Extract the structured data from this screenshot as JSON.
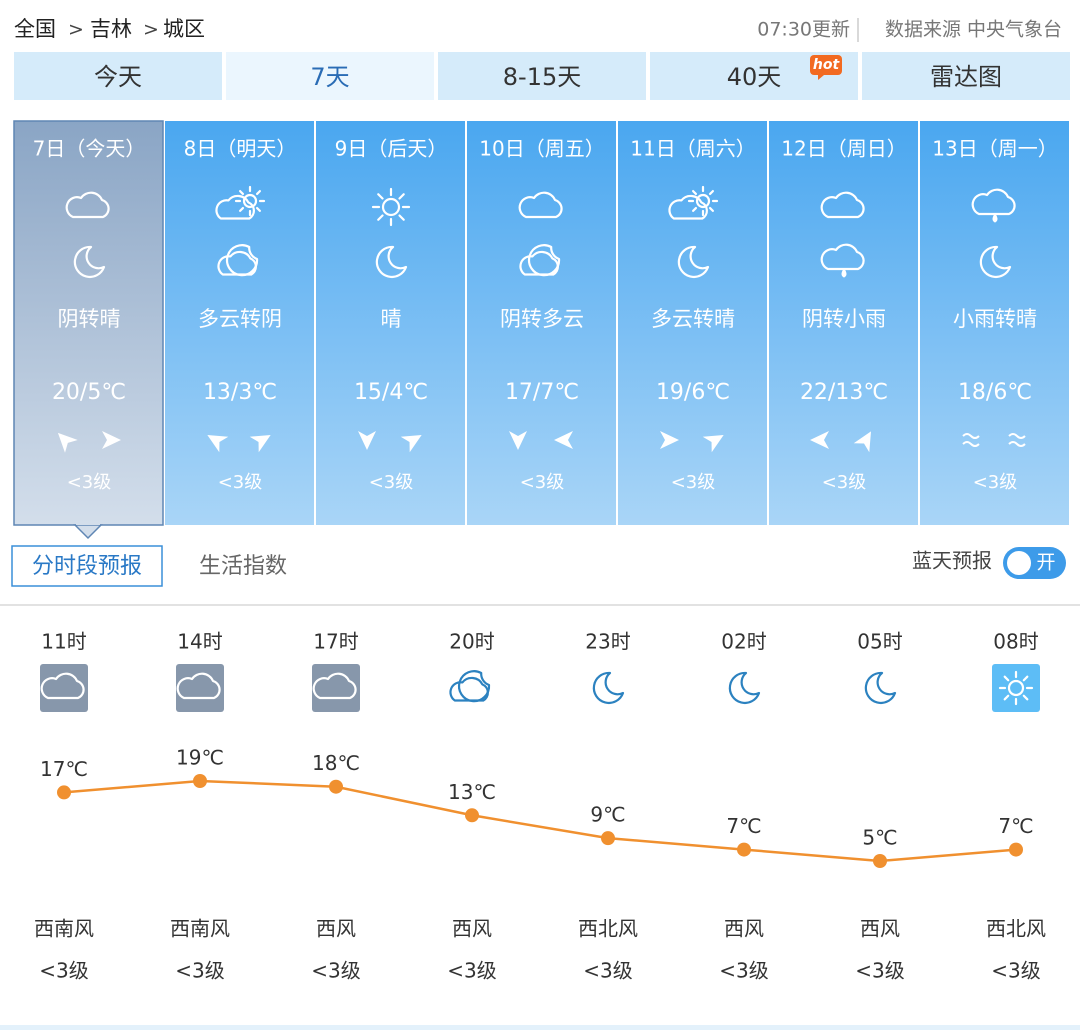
{
  "header": {
    "breadcrumb": [
      "全国",
      "吉林",
      "城区"
    ],
    "separator": ">",
    "updated": "07:30更新",
    "source": "数据来源 中央气象台"
  },
  "tabs": {
    "items": [
      "今天",
      "7天",
      "8-15天",
      "40天",
      "雷达图"
    ],
    "badge": "hot"
  },
  "days": [
    {
      "date": "7日（今天）",
      "weather": "阴转晴",
      "temp": "20/5℃",
      "wind": "<3级"
    },
    {
      "date": "8日（明天）",
      "weather": "多云转阴",
      "temp": "13/3℃",
      "wind": "<3级"
    },
    {
      "date": "9日（后天）",
      "weather": "晴",
      "temp": "15/4℃",
      "wind": "<3级"
    },
    {
      "date": "10日（周五）",
      "weather": "阴转多云",
      "temp": "17/7℃",
      "wind": "<3级"
    },
    {
      "date": "11日（周六）",
      "weather": "多云转晴",
      "temp": "19/6℃",
      "wind": "<3级"
    },
    {
      "date": "12日（周日）",
      "weather": "阴转小雨",
      "temp": "22/13℃",
      "wind": "<3级"
    },
    {
      "date": "13日（周一）",
      "weather": "小雨转晴",
      "temp": "18/6℃",
      "wind": "<3级"
    }
  ],
  "subtabs": [
    "分时段预报",
    "生活指数"
  ],
  "blue_sky": {
    "label": "蓝天预报",
    "toggle": "开"
  },
  "chart_data": {
    "type": "line",
    "categories": [
      "11时",
      "14时",
      "17时",
      "20时",
      "23时",
      "02时",
      "05时",
      "08时"
    ],
    "values": [
      17,
      19,
      18,
      13,
      9,
      7,
      5,
      7
    ],
    "value_labels": [
      "17℃",
      "19℃",
      "18℃",
      "13℃",
      "9℃",
      "7℃",
      "5℃",
      "7℃"
    ],
    "color": "#f0902f"
  },
  "hourly_wind": {
    "direction": [
      "西南风",
      "西南风",
      "西风",
      "西风",
      "西北风",
      "西风",
      "西风",
      "西北风"
    ],
    "level": [
      "<3级",
      "<3级",
      "<3级",
      "<3级",
      "<3级",
      "<3级",
      "<3级",
      "<3级"
    ]
  }
}
